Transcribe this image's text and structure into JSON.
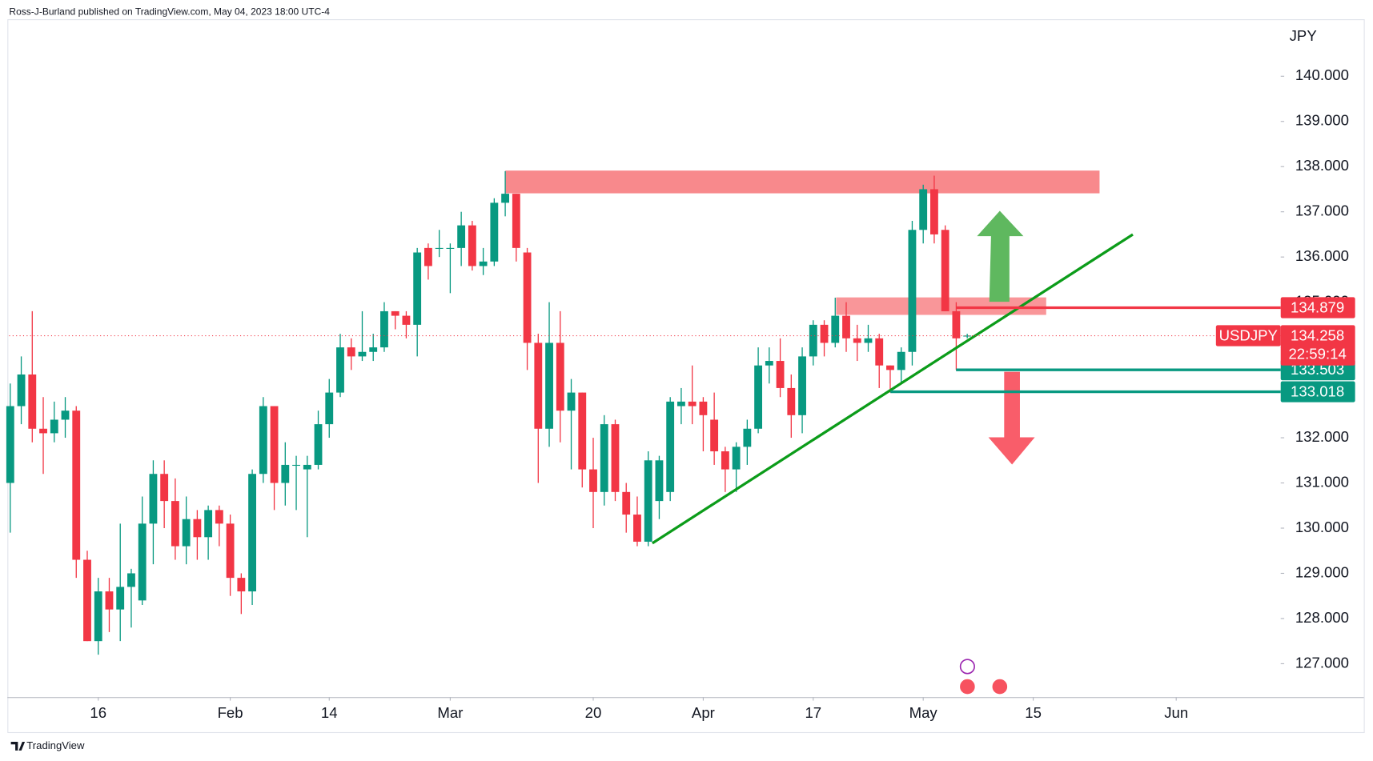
{
  "header": {
    "publisher": "Ross-J-Burland published on TradingView.com, May 04, 2023 18:00 UTC-4",
    "brand": "TradingView"
  },
  "chart_data": {
    "type": "candlestick",
    "currency": "JPY",
    "up_color": "#089981",
    "down_color": "#f23645",
    "x": [
      0,
      1,
      2,
      3,
      4,
      5,
      6,
      7,
      8,
      9,
      10,
      11,
      12,
      13,
      14,
      15,
      16,
      17,
      18,
      19,
      20,
      21,
      22,
      23,
      24,
      25,
      26,
      27,
      28,
      29,
      30,
      31,
      32,
      33,
      34,
      35,
      36,
      37,
      38,
      39,
      40,
      41,
      42,
      43,
      44,
      45,
      46,
      47,
      48,
      49,
      50,
      51,
      52,
      53,
      54,
      55,
      56,
      57,
      58,
      59,
      60,
      61,
      62,
      63,
      64,
      65,
      66,
      67,
      68,
      69,
      70,
      71,
      72,
      73,
      74,
      75,
      76,
      77,
      78,
      79,
      80,
      81,
      82,
      83,
      84,
      85,
      86,
      87
    ],
    "open": [
      131.0,
      132.7,
      133.4,
      132.2,
      132.1,
      132.4,
      132.6,
      129.3,
      127.5,
      128.6,
      128.2,
      128.7,
      128.4,
      130.1,
      131.2,
      130.6,
      129.6,
      130.2,
      129.8,
      130.4,
      130.1,
      128.9,
      128.6,
      131.2,
      132.7,
      131.0,
      131.4,
      131.3,
      131.4,
      132.3,
      133.0,
      134.0,
      133.8,
      133.9,
      134.0,
      134.8,
      134.7,
      134.5,
      136.2,
      136.2,
      136.2,
      136.2,
      136.7,
      135.8,
      135.9,
      137.2,
      137.4,
      136.1,
      134.1,
      132.2,
      134.1,
      132.6,
      133.0,
      131.3,
      130.8,
      132.3,
      130.8,
      130.3,
      129.7,
      130.6,
      130.8,
      132.7,
      132.8,
      132.8,
      132.4,
      131.7,
      131.3,
      131.8,
      132.2,
      133.6,
      133.7,
      133.1,
      132.5,
      133.8,
      134.5,
      134.1,
      134.7,
      134.2,
      134.1,
      134.2,
      133.6,
      133.5,
      133.9,
      136.6,
      137.5,
      136.6,
      134.8,
      134.26
    ],
    "high": [
      133.2,
      133.8,
      134.8,
      132.9,
      132.8,
      132.9,
      132.7,
      129.5,
      128.9,
      128.9,
      130.1,
      129.1,
      130.7,
      131.5,
      131.5,
      131.1,
      130.7,
      130.4,
      130.5,
      130.5,
      130.3,
      129.0,
      131.3,
      132.9,
      132.7,
      131.9,
      131.6,
      131.6,
      132.6,
      133.3,
      134.3,
      134.2,
      134.8,
      134.3,
      135.0,
      134.8,
      134.8,
      136.2,
      136.3,
      136.6,
      136.3,
      137.0,
      136.8,
      136.2,
      137.3,
      137.9,
      137.4,
      136.2,
      134.3,
      135.0,
      134.8,
      133.3,
      133.0,
      132.0,
      132.5,
      132.4,
      131.0,
      130.7,
      131.7,
      131.6,
      132.9,
      133.1,
      133.6,
      132.9,
      133.0,
      131.8,
      131.9,
      132.4,
      134.0,
      134.0,
      134.2,
      133.4,
      134.0,
      134.6,
      134.6,
      135.1,
      135.0,
      134.5,
      134.5,
      134.3,
      133.6,
      134.0,
      136.8,
      137.6,
      137.8,
      136.7,
      135.0,
      134.3
    ],
    "low": [
      129.9,
      132.3,
      131.9,
      131.2,
      131.9,
      132.0,
      128.9,
      127.5,
      127.2,
      127.7,
      127.5,
      127.8,
      128.3,
      129.2,
      130.0,
      129.3,
      129.2,
      129.3,
      129.3,
      129.6,
      128.5,
      128.1,
      128.3,
      131.0,
      130.4,
      130.5,
      130.4,
      129.8,
      131.3,
      132.0,
      132.9,
      133.5,
      133.7,
      133.7,
      133.9,
      134.4,
      134.2,
      133.8,
      135.5,
      136.0,
      135.2,
      135.8,
      135.7,
      135.6,
      135.8,
      136.9,
      135.9,
      133.5,
      131.0,
      131.8,
      131.9,
      131.3,
      130.9,
      130.0,
      130.5,
      130.6,
      129.9,
      129.6,
      129.6,
      130.2,
      130.6,
      132.3,
      132.3,
      131.7,
      131.4,
      130.8,
      130.8,
      131.4,
      132.1,
      133.2,
      132.9,
      132.0,
      132.1,
      133.6,
      133.8,
      134.0,
      133.9,
      133.7,
      133.9,
      133.1,
      133.0,
      133.2,
      133.6,
      136.3,
      136.3,
      134.8,
      133.5,
      134.2
    ],
    "close": [
      132.7,
      133.4,
      132.2,
      132.1,
      132.4,
      132.6,
      129.3,
      127.5,
      128.6,
      128.2,
      128.7,
      129.0,
      130.1,
      131.2,
      130.6,
      129.6,
      130.2,
      129.8,
      130.4,
      130.1,
      128.9,
      128.6,
      131.2,
      132.7,
      131.0,
      131.4,
      131.4,
      131.4,
      132.3,
      133.0,
      134.0,
      133.8,
      133.9,
      134.0,
      134.8,
      134.7,
      134.5,
      136.1,
      135.8,
      136.2,
      136.2,
      136.7,
      135.8,
      135.9,
      137.2,
      137.4,
      136.2,
      134.1,
      132.2,
      134.1,
      132.6,
      133.0,
      131.3,
      130.8,
      132.3,
      130.8,
      130.3,
      129.7,
      131.5,
      131.5,
      132.8,
      132.8,
      132.7,
      132.5,
      131.7,
      131.3,
      131.8,
      132.2,
      133.6,
      133.7,
      133.1,
      132.5,
      133.8,
      134.5,
      134.1,
      134.7,
      134.2,
      134.1,
      134.2,
      133.6,
      133.5,
      133.9,
      136.6,
      137.5,
      136.5,
      134.8,
      134.2,
      134.26
    ],
    "xlim": [
      -0.1,
      115.5
    ],
    "xticks": [
      {
        "value": 8,
        "label": "16"
      },
      {
        "value": 20,
        "label": "Feb"
      },
      {
        "value": 29,
        "label": "14"
      },
      {
        "value": 40,
        "label": "Mar"
      },
      {
        "value": 53,
        "label": "20"
      },
      {
        "value": 63,
        "label": "Apr"
      },
      {
        "value": 73,
        "label": "17"
      },
      {
        "value": 83,
        "label": "May"
      },
      {
        "value": 93,
        "label": "15"
      },
      {
        "value": 106,
        "label": "Jun"
      }
    ],
    "ylim": [
      126.26,
      141.3
    ],
    "yticks": [
      {
        "value": 127,
        "label": "127.000"
      },
      {
        "value": 128,
        "label": "128.000"
      },
      {
        "value": 129,
        "label": "129.000"
      },
      {
        "value": 130,
        "label": "130.000"
      },
      {
        "value": 131,
        "label": "131.000"
      },
      {
        "value": 132,
        "label": "132.000"
      },
      {
        "value": 133,
        "label": "133.000"
      },
      {
        "value": 134,
        "label": "134.000"
      },
      {
        "value": 135,
        "label": "135.000"
      },
      {
        "value": 136,
        "label": "136.000"
      },
      {
        "value": 137,
        "label": "137.000"
      },
      {
        "value": 138,
        "label": "138.000"
      },
      {
        "value": 139,
        "label": "139.000"
      },
      {
        "value": 140,
        "label": "140.000"
      }
    ],
    "price_lines": [
      {
        "value": 134.879,
        "color": "#f23645"
      },
      {
        "value": 133.503,
        "color": "#089981"
      },
      {
        "value": 133.018,
        "color": "#089981"
      }
    ],
    "last_price": {
      "symbol": "USDJPY",
      "value": 134.258,
      "countdown": "22:59:14",
      "color": "#f23645"
    }
  }
}
